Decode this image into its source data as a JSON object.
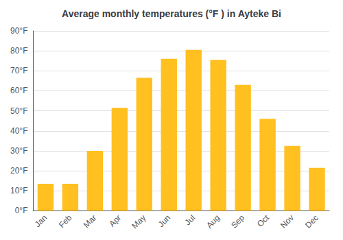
{
  "chart_data": {
    "type": "bar",
    "title": "Average monthly temperatures (°F ) in Ayteke Bi",
    "categories": [
      "Jan",
      "Feb",
      "Mar",
      "Apr",
      "May",
      "Jun",
      "Jul",
      "Aug",
      "Sep",
      "Oct",
      "Nov",
      "Dec"
    ],
    "values": [
      13.5,
      13.5,
      30,
      51.5,
      66.5,
      76,
      80.5,
      75.5,
      63,
      46,
      32.5,
      21.5
    ],
    "color": "#FFC020",
    "ylim": [
      0,
      90
    ],
    "yticks": [
      {
        "value": 0,
        "label": "0°F"
      },
      {
        "value": 10,
        "label": "10°F"
      },
      {
        "value": 20,
        "label": "20°F"
      },
      {
        "value": 30,
        "label": "30°F"
      },
      {
        "value": 40,
        "label": "40°F"
      },
      {
        "value": 50,
        "label": "50°F"
      },
      {
        "value": 60,
        "label": "60°F"
      },
      {
        "value": 70,
        "label": "70°F"
      },
      {
        "value": 80,
        "label": "80°F"
      },
      {
        "value": 90,
        "label": "90°F"
      }
    ],
    "grid": true
  }
}
